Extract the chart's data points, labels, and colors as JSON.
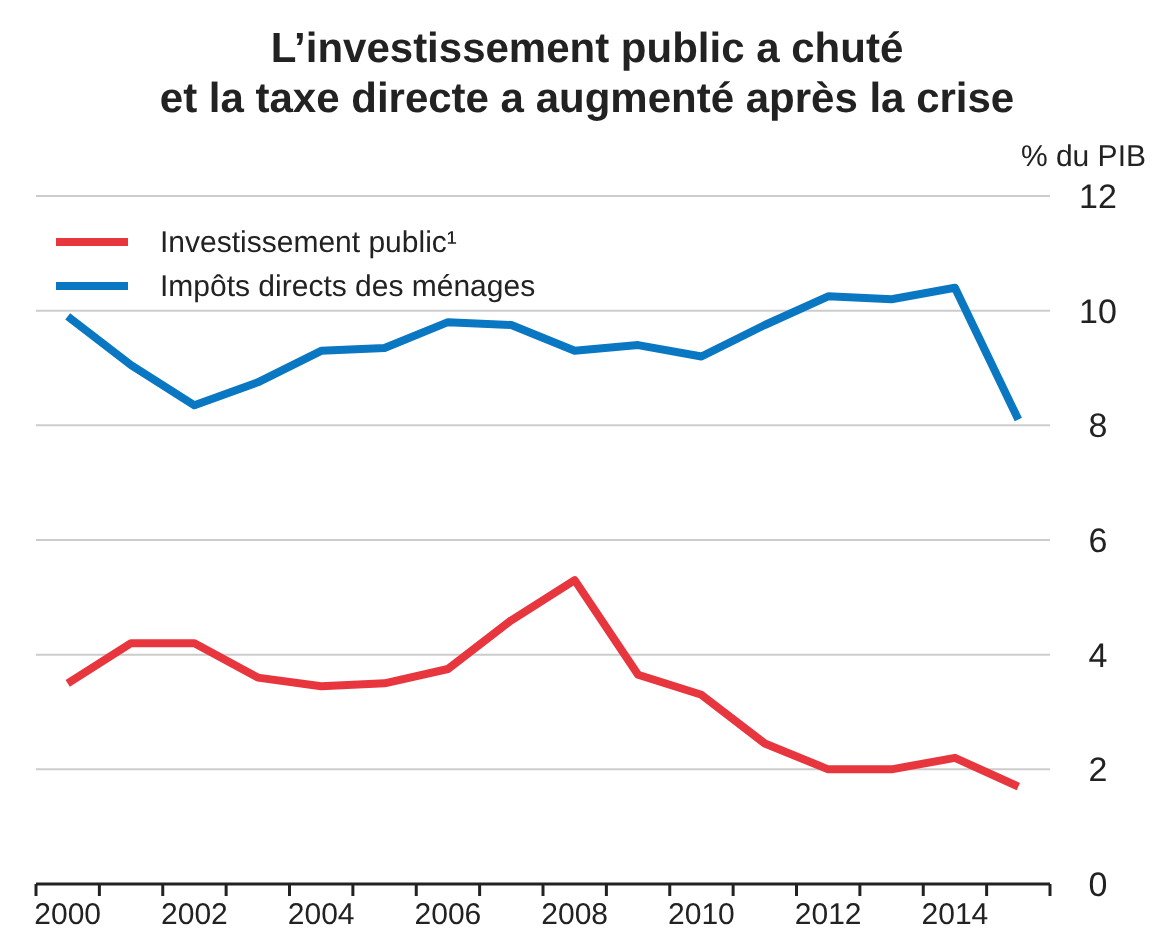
{
  "chart_data": {
    "type": "line",
    "title": "L’investissement public a chuté\net la taxe directe a augmenté après la crise",
    "ylabel": "% du PIB",
    "categories": [
      "2000",
      null,
      "2002",
      null,
      "2004",
      null,
      "2006",
      null,
      "2008",
      null,
      "2010",
      null,
      "2012",
      null,
      "2014",
      null
    ],
    "series": [
      {
        "name": "Investissement public¹",
        "color": "#e8363f",
        "values": [
          3.5,
          4.2,
          4.2,
          3.6,
          3.45,
          3.5,
          3.75,
          4.6,
          5.3,
          3.65,
          3.3,
          2.45,
          2.0,
          2.0,
          2.2,
          1.7
        ]
      },
      {
        "name": "Impôts directs des ménages",
        "color": "#0a77c2",
        "values": [
          9.9,
          9.05,
          8.35,
          8.75,
          9.3,
          9.35,
          9.8,
          9.75,
          9.3,
          9.4,
          9.2,
          9.75,
          10.25,
          10.2,
          10.4,
          8.1
        ]
      }
    ],
    "ylim": [
      0,
      12
    ],
    "yticks": [
      0,
      2,
      4,
      6,
      8,
      10,
      12
    ],
    "grid": "y",
    "legend": "top left",
    "marker": "none",
    "line_style": "solid"
  }
}
